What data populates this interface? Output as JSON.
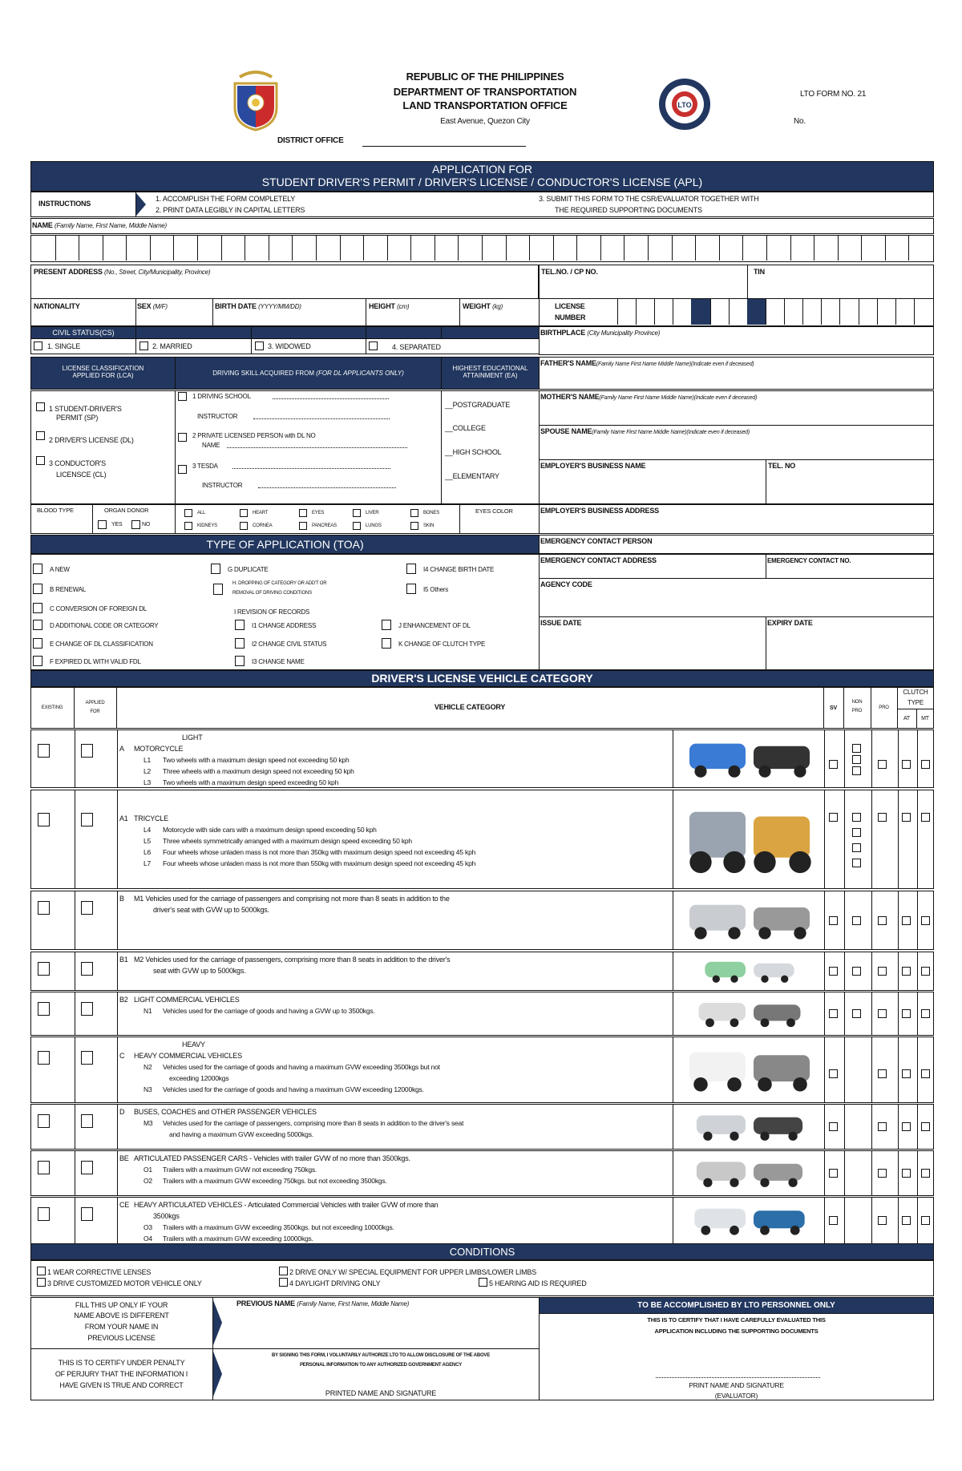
{
  "header": {
    "line1": "REPUBLIC OF THE PHILIPPINES",
    "line2": "DEPARTMENT OF TRANSPORTATION",
    "line3": "LAND TRANSPORTATION OFFICE",
    "address": "East Avenue, Quezon City",
    "district_office": "DISTRICT OFFICE",
    "form_no": "LTO FORM NO. 21",
    "no_label": "No."
  },
  "title": {
    "line1": "APPLICATION FOR",
    "line2": "STUDENT DRIVER'S PERMIT  / DRIVER'S LICENSE / CONDUCTOR'S LICENSE (APL)"
  },
  "instructions": {
    "label": "INSTRUCTIONS",
    "i1": "1. ACCOMPLISH THE FORM COMPLETELY",
    "i2": "2. PRINT DATA LEGIBLY IN CAPITAL LETTERS",
    "i3a": "3. SUBMIT THIS FORM TO THE CSR/EVALUATOR TOGETHER WITH",
    "i3b": "THE REQUIRED SUPPORTING DOCUMENTS"
  },
  "fields": {
    "name": "NAME",
    "name_hint": "(Family Name, First Name, Middle Name)",
    "address": "PRESENT ADDRESS",
    "address_hint": "(No., Street, City/Municipality, Province)",
    "tel": "TEL.NO. / CP NO.",
    "tin": "TIN",
    "nationality": "NATIONALITY",
    "sex": "SEX",
    "sex_hint": "(M/F)",
    "birth_date": "BIRTH DATE",
    "birth_date_hint": "(YYYY/MM/DD)",
    "height": "HEIGHT",
    "height_hint": "(cm)",
    "weight": "WEIGHT",
    "weight_hint": "(kg)",
    "license_number_1": "LICENSE",
    "license_number_2": "NUMBER",
    "birthplace": "BIRTHPLACE",
    "birthplace_hint": "(City Municipality Province)",
    "father": "FATHER'S NAME",
    "father_hint": "(Family Name First Name Middle Name)(Indicate even if deceased)",
    "mother": "MOTHER'S NAME",
    "mother_hint": "(Family Name First Name Middle Name)(Indicate even if deceased)",
    "spouse": "SPOUSE NAME",
    "spouse_hint": "(Family Name First Name Middle Name)(Indicate even if deceased)",
    "employer_name": "EMPLOYER'S BUSINESS NAME",
    "employer_tel": "TEL. NO",
    "employer_address": "EMPLOYER'S BUSINESS ADDRESS",
    "emergency_person": "EMERGENCY CONTACT PERSON",
    "emergency_address": "EMERGENCY CONTACT ADDRESS",
    "emergency_no": "EMERGENCY CONTACT NO.",
    "agency_code": "AGENCY CODE",
    "issue_date": "ISSUE DATE",
    "expiry_date": "EXPIRY DATE"
  },
  "civil_status": {
    "label": "CIVIL STATUS(CS)",
    "options": [
      "1. SINGLE",
      "2. MARRIED",
      "3. WIDOWED",
      "4. SEPARATED"
    ]
  },
  "lca": {
    "header1": "LICENSE CLASSIFICATION",
    "header2": "APPLIED FOR (LCA)",
    "o1a": "1 STUDENT-DRIVER'S",
    "o1b": "PERMIT (SP)",
    "o2": "2 DRIVER'S LICENSE (DL)",
    "o3a": "3 CONDUCTOR'S",
    "o3b": "LICENSCE (CL)"
  },
  "skill": {
    "header": "DRIVING SKILL ACQUIRED FROM",
    "header_hint": "(FOR DL APPLICANTS ONLY)",
    "s1": "1 DRIVING SCHOOL",
    "instructor": "INSTRUCTOR",
    "s2": "2 PRIVATE LICENSED PERSON with DL NO",
    "name": "NAME",
    "s3": "3 TESDA"
  },
  "education": {
    "header1": "HIGHEST EDUCATIONAL",
    "header2": "ATTAINMENT (EA)",
    "options": [
      "POSTGRADUATE",
      "COLLEGE",
      "HIGH SCHOOL",
      "ELEMENTARY"
    ]
  },
  "donor": {
    "blood_type": "BLOOD TYPE",
    "organ_donor": "ORGAN DONOR",
    "yes": "YES",
    "no": "NO",
    "organs": [
      "ALL",
      "HEART",
      "EYES",
      "LIVER",
      "BONES",
      "KIDNEYS",
      "CORNEA",
      "PANCREAS",
      "LUNGS",
      "SKIN"
    ],
    "eyes_color": "EYES COLOR"
  },
  "toa": {
    "header": "TYPE OF APPLICATION (TOA)",
    "a": "A  NEW",
    "b": "B  RENEWAL",
    "c": "C  CONVERSION OF FOREIGN DL",
    "d": "D  ADDITIONAL CODE OR CATEGORY",
    "e": "E  CHANGE OF DL CLASSIFICATION",
    "f": "F  EXPIRED DL WITH VALID FDL",
    "g": "G  DUPLICATE",
    "h1": "H. DROPPING OF CATEGORY OR ADD'T OR",
    "h2": "REMOVAL OF DRIVING CONDITIONS",
    "i": "I  REVISION OF RECORDS",
    "i1": "I1  CHANGE ADDRESS",
    "i2": "I2  CHANGE CIVIL STATUS",
    "i3": "I3  CHANGE NAME",
    "i4": "I4  CHANGE BIRTH DATE",
    "i5": "I5  Others",
    "j": "J  ENHANCEMENT OF DL",
    "k": "K  CHANGE OF CLUTCH TYPE"
  },
  "vehicle": {
    "header": "DRIVER'S LICENSE VEHICLE CATEGORY",
    "col_existing": "EXISTING",
    "col_applied1": "APPLIED",
    "col_applied2": "FOR",
    "col_category": "VEHICLE CATEGORY",
    "col_sv": "SV",
    "col_nonpro1": "NON",
    "col_nonpro2": "PRO",
    "col_pro": "PRO",
    "col_clutch1": "CLUTCH",
    "col_clutch2": "TYPE",
    "col_at": "AT",
    "col_mt": "MT",
    "rows": [
      {
        "group": "LIGHT",
        "code": "A",
        "title": "MOTORCYCLE",
        "lines": [
          [
            "L1",
            "Two wheels with a maximum design speed not exceeding 50 kph"
          ],
          [
            "L2",
            "Three wheels with a maximum design speed not exceeding 50 kph"
          ],
          [
            "L3",
            "Two wheels with a maximum design speed exceeding 50 kph"
          ]
        ],
        "image": "motorcycle-image",
        "nonpro_boxes": 3
      },
      {
        "code": "A1",
        "title": "TRICYCLE",
        "lines": [
          [
            "L4",
            "Motorcycle with side cars with a maximum design speed exceeding 50 kph"
          ],
          [
            "L5",
            "Three wheels symmetrically arranged with a maximum design speed exceeding 50 kph"
          ],
          [
            "L6",
            "Four wheels whose unladen mass is not more than 350kg with maximum design speed not exceeding 45 kph"
          ],
          [
            "L7",
            "Four wheels whose unladen mass is not more than 550kg with maximum design speed not exceeding 45 kph"
          ]
        ],
        "image": "tricycle-image",
        "nonpro_boxes": 4
      },
      {
        "code": "B",
        "title": "M1 Vehicles used for the carriage of passengers and comprising not more than 8 seats in addition to the",
        "title2": "driver's seat with GVW up to 5000kgs.",
        "lines": [],
        "image": "car-image",
        "nonpro_boxes": 1
      },
      {
        "code": "B1",
        "title": "M2 Vehicles used for the carriage of passengers, comprising more than 8 seats in addition to the driver's",
        "title2": "seat with GVW up to 5000kgs.",
        "lines": [],
        "image": "van-image",
        "nonpro_boxes": 1
      },
      {
        "code": "B2",
        "title": "LIGHT COMMERCIAL VEHICLES",
        "lines": [
          [
            "N1",
            "Vehicles used for the carriage of goods and having a GVW up to 3500kgs."
          ]
        ],
        "image": "pickup-truck-image",
        "nonpro_boxes": 1
      },
      {
        "group": "HEAVY",
        "code": "C",
        "title": "HEAVY COMMERCIAL VEHICLES",
        "lines": [
          [
            "N2",
            "Vehicles used for the carriage of goods and having a maximum GVW exceeding 3500kgs but not"
          ],
          [
            "",
            "exceeding 12000kgs"
          ],
          [
            "N3",
            "Vehicles used for the carriage of goods and having a maximum GVW exceeding 12000kgs."
          ]
        ],
        "image": "box-truck-image",
        "nonpro_boxes": 0
      },
      {
        "code": "D",
        "title": "BUSES, COACHES and OTHER PASSENGER VEHICLES",
        "lines": [
          [
            "M3",
            "Vehicles used for the carriage of passengers, comprising more than 8 seats in addition to the driver's seat"
          ],
          [
            "",
            "and having a maximum GVW exceeding 5000kgs."
          ]
        ],
        "image": "bus-image",
        "nonpro_boxes": 0
      },
      {
        "code": "BE",
        "title": "ARTICULATED PASSENGER CARS - Vehicles with trailer GVW of no more than 3500kgs.",
        "lines": [
          [
            "O1",
            "Trailers with a maximum GVW not exceeding 750kgs."
          ],
          [
            "O2",
            "Trailers with a maximum GVW exceeding 750kgs. but not exceeding 3500kgs."
          ]
        ],
        "image": "car-trailer-image",
        "nonpro_boxes": 0
      },
      {
        "code": "CE",
        "title": "HEAVY ARTICULATED VEHICLES - Articulated Commercial Vehicles with trailer GVW of more than",
        "title2": "3500kgs",
        "lines": [
          [
            "O3",
            "Trailers with a maximum GVW exceeding 3500kgs. but not exceeding 10000kgs."
          ],
          [
            "O4",
            "Trailers with a maximum GVW exceeding 10000kgs."
          ]
        ],
        "image": "semi-truck-image",
        "nonpro_boxes": 0
      }
    ]
  },
  "conditions": {
    "header": "CONDITIONS",
    "c1": "1 WEAR CORRECTIVE LENSES",
    "c2": "2 DRIVE ONLY W/ SPECIAL EQUIPMENT FOR UPPER LIMBS/LOWER LIMBS",
    "c3": "3 DRIVE CUSTOMIZED MOTOR VEHICLE ONLY",
    "c4": "4 DAYLIGHT DRIVING ONLY",
    "c5": "5  HEARING AID IS REQUIRED"
  },
  "footer": {
    "fill1": "FILL THIS UP ONLY IF YOUR",
    "fill2": "NAME ABOVE IS DIFFERENT",
    "fill3": "FROM YOUR NAME IN",
    "fill4": "PREVIOUS LICENSE",
    "prev_name": "PREVIOUS NAME",
    "prev_name_hint": "(Family Name, First Name, Middle Name)",
    "cert1": "THIS IS TO CERTIFY UNDER PENALTY",
    "cert2": "OF PERJURY THAT THE INFORMATION I",
    "cert3": "HAVE GIVEN IS TRUE AND CORRECT",
    "consent1": "BY SIGNING THIS FORM, I VOLUNTARILY AUTHORIZE LTO TO ALLOW DISCLOSURE OF THE ABOVE",
    "consent2": "PERSONAL INFORMATION TO ANY AUTHORIZED GOVERNMENT AGENCY",
    "printed_name": "PRINTED NAME AND SIGNATURE",
    "lto_header": "TO BE ACCOMPLISHED BY LTO PERSONNEL ONLY",
    "lto1": "THIS IS TO CERTIFY THAT I HAVE CAREFULLY EVALUATED THIS",
    "lto2": "APPLICATION INCLUDING THE SUPPORTING DOCUMENTS",
    "evaluator1": "PRINT NAME AND SIGNATURE",
    "evaluator2": "(EVALUATOR)"
  },
  "colors": {
    "navy": "#22375f"
  }
}
